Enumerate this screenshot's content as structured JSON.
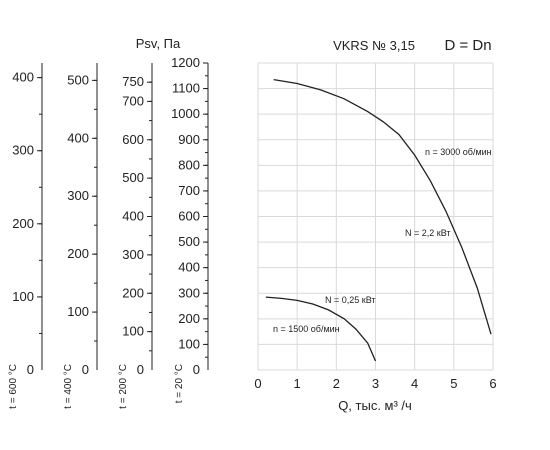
{
  "chart_data": {
    "type": "line",
    "title": "VKRS № 3,15",
    "title_right": "D = Dn",
    "xlabel": "Q, тыс. м³ /ч",
    "ylabel": "Psv, Па",
    "xlim": [
      0,
      6
    ],
    "ylim": [
      0,
      1200
    ],
    "grid": true,
    "x_ticks": [
      0,
      1,
      2,
      3,
      4,
      5,
      6
    ],
    "y_axes": [
      {
        "label": "t = 20 °C",
        "ticks": [
          100,
          200,
          300,
          400,
          500,
          600,
          700,
          800,
          900,
          1000,
          1100,
          1200
        ],
        "zero": "0"
      },
      {
        "label": "t = 200 °C",
        "ticks": [
          100,
          200,
          300,
          400,
          500,
          600,
          700,
          750
        ],
        "zero": "0"
      },
      {
        "label": "t = 400 °C",
        "ticks": [
          100,
          200,
          300,
          400,
          500
        ],
        "zero": "0"
      },
      {
        "label": "t = 600 °C",
        "ticks": [
          100,
          200,
          300,
          400
        ],
        "zero": "0"
      }
    ],
    "series": [
      {
        "name": "n = 3000 об/мин",
        "power": "N = 2,2 кВт",
        "x": [
          0.4,
          1.0,
          1.6,
          2.2,
          2.8,
          3.2,
          3.6,
          4.0,
          4.4,
          4.8,
          5.2,
          5.6,
          5.95
        ],
        "y": [
          1135,
          1120,
          1095,
          1060,
          1010,
          970,
          920,
          840,
          740,
          620,
          480,
          320,
          140
        ]
      },
      {
        "name": "n = 1500 об/мин",
        "power": "N = 0,25 кВт",
        "x": [
          0.2,
          0.6,
          1.0,
          1.4,
          1.8,
          2.2,
          2.5,
          2.8,
          3.0
        ],
        "y": [
          285,
          280,
          272,
          258,
          235,
          200,
          160,
          105,
          35
        ]
      }
    ]
  }
}
